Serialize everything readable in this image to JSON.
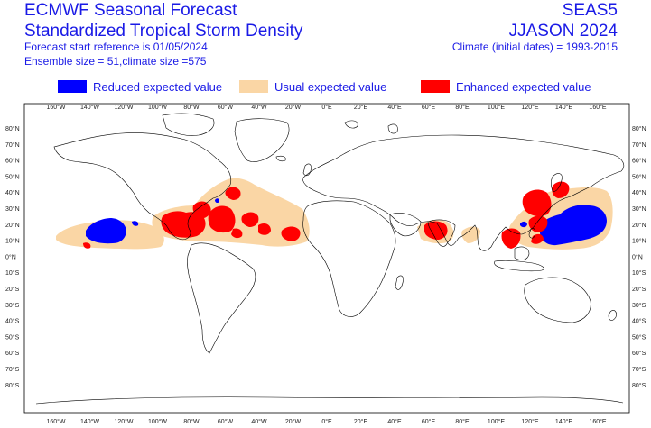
{
  "header": {
    "title_line1": "ECMWF Seasonal Forecast",
    "title_line2": "Standardized Tropical Storm Density",
    "forecast_start": "Forecast start reference is 01/05/2024",
    "ensemble": "Ensemble size = 51,climate size =575",
    "system": "SEAS5",
    "season": "JJASON 2024",
    "climate_period": "Climate (initial dates) = 1993-2015"
  },
  "legend": [
    {
      "label": "Reduced expected value",
      "color": "#0000ff"
    },
    {
      "label": "Usual expected value",
      "color": "#fad6a5"
    },
    {
      "label": "Enhanced expected value",
      "color": "#ff0000"
    }
  ],
  "map": {
    "lon_ticks": [
      "160°W",
      "140°W",
      "120°W",
      "100°W",
      "80°W",
      "60°W",
      "40°W",
      "20°W",
      "0°E",
      "20°E",
      "40°E",
      "60°E",
      "80°E",
      "100°E",
      "120°E",
      "140°E",
      "160°E"
    ],
    "lat_ticks": [
      "80°N",
      "70°N",
      "60°N",
      "50°N",
      "40°N",
      "30°N",
      "20°N",
      "10°N",
      "0°N",
      "10°S",
      "20°S",
      "30°S",
      "40°S",
      "50°S",
      "60°S",
      "70°S",
      "80°S"
    ],
    "colors": {
      "land_outline": "#000000",
      "reduced": "#0000ff",
      "usual": "#fad6a5",
      "enhanced": "#ff0000",
      "text": "#1a1ae6"
    }
  }
}
